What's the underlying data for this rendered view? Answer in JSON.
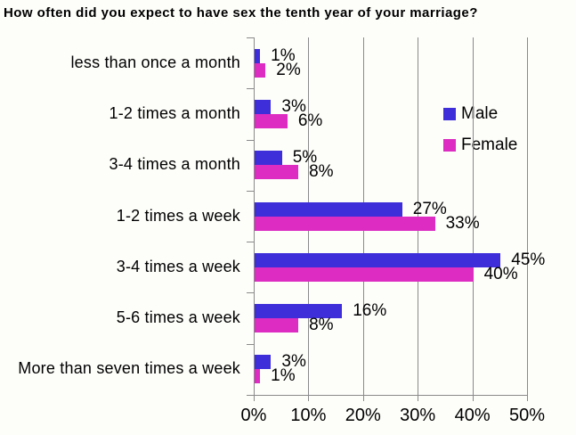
{
  "title": "How often did you expect to have sex the tenth year of your marriage?",
  "chart_data": {
    "type": "bar",
    "orientation": "horizontal",
    "title": "How often did you expect to have sex the tenth year of your marriage?",
    "categories": [
      "less than once a month",
      "1-2 times a month",
      "3-4 times a month",
      "1-2 times a week",
      "3-4 times a week",
      "5-6 times a week",
      "More than seven times a week"
    ],
    "series": [
      {
        "name": "Male",
        "color": "#3e2ed9",
        "values": [
          1,
          3,
          5,
          27,
          45,
          16,
          3
        ]
      },
      {
        "name": "Female",
        "color": "#dc2cc2",
        "values": [
          2,
          6,
          8,
          33,
          40,
          8,
          1
        ]
      }
    ],
    "value_suffix": "%",
    "data_labels": true,
    "xlabel": "",
    "ylabel": "",
    "xlim": [
      0,
      50
    ],
    "x_tick_labels": [
      "0%",
      "10%",
      "20%",
      "30%",
      "40%",
      "50%"
    ],
    "x_tick_values": [
      0,
      10,
      20,
      30,
      40,
      50
    ],
    "grid": true,
    "legend_position": "inside-right"
  },
  "colors": {
    "male": "#3e2ed9",
    "female": "#dc2cc2",
    "grid": "#8a8a8a",
    "axis": "#8a8a8a",
    "text": "#000000",
    "background": "#fdfdfa"
  }
}
